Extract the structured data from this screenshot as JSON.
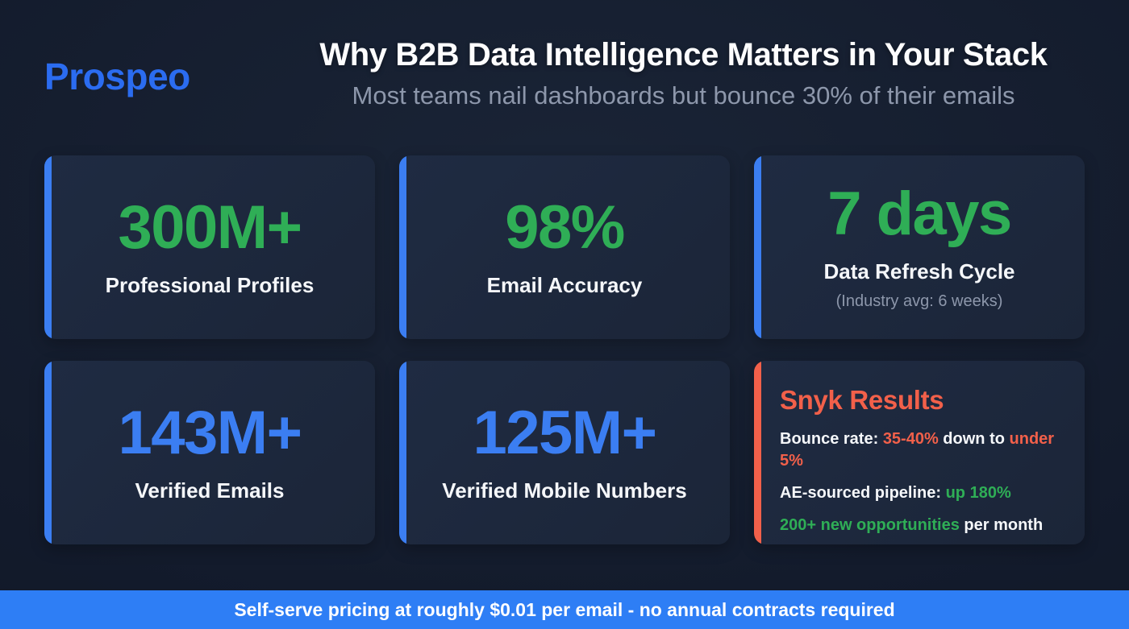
{
  "header": {
    "logo": "Prospeo",
    "title": "Why B2B Data Intelligence Matters in Your Stack",
    "subtitle": "Most teams nail dashboards but bounce 30% of their emails"
  },
  "stats": [
    {
      "value": "300M+",
      "label": "Professional Profiles",
      "accent": "blue",
      "value_color": "green"
    },
    {
      "value": "98%",
      "label": "Email Accuracy",
      "accent": "blue",
      "value_color": "green"
    },
    {
      "value": "7 days",
      "label": "Data Refresh Cycle",
      "note": "(Industry avg: 6 weeks)",
      "accent": "blue",
      "value_color": "green"
    },
    {
      "value": "143M+",
      "label": "Verified Emails",
      "accent": "blue",
      "value_color": "blue"
    },
    {
      "value": "125M+",
      "label": "Verified Mobile Numbers",
      "accent": "blue",
      "value_color": "blue"
    }
  ],
  "results": {
    "title": "Snyk Results",
    "lines": [
      {
        "segments": [
          {
            "text": "Bounce rate: ",
            "color": "white"
          },
          {
            "text": "35-40%",
            "color": "orange"
          },
          {
            "text": " down to ",
            "color": "white"
          },
          {
            "text": "under 5%",
            "color": "orange"
          }
        ]
      },
      {
        "segments": [
          {
            "text": "AE-sourced pipeline: ",
            "color": "white"
          },
          {
            "text": "up 180%",
            "color": "green"
          }
        ]
      },
      {
        "segments": [
          {
            "text": "200+ new opportunities",
            "color": "green"
          },
          {
            "text": " per month",
            "color": "white"
          }
        ]
      }
    ]
  },
  "footer": {
    "text": "Self-serve pricing at roughly $0.01 per email - no annual contracts required"
  },
  "colors": {
    "background": "#131b2c",
    "card_background": "#1f2b42",
    "accent_blue": "#3b7ef2",
    "accent_green": "#2fae56",
    "accent_orange": "#f2604a",
    "banner_blue": "#2e7ef5",
    "logo_blue": "#2b6cf0",
    "muted_text": "#8d97ab"
  }
}
